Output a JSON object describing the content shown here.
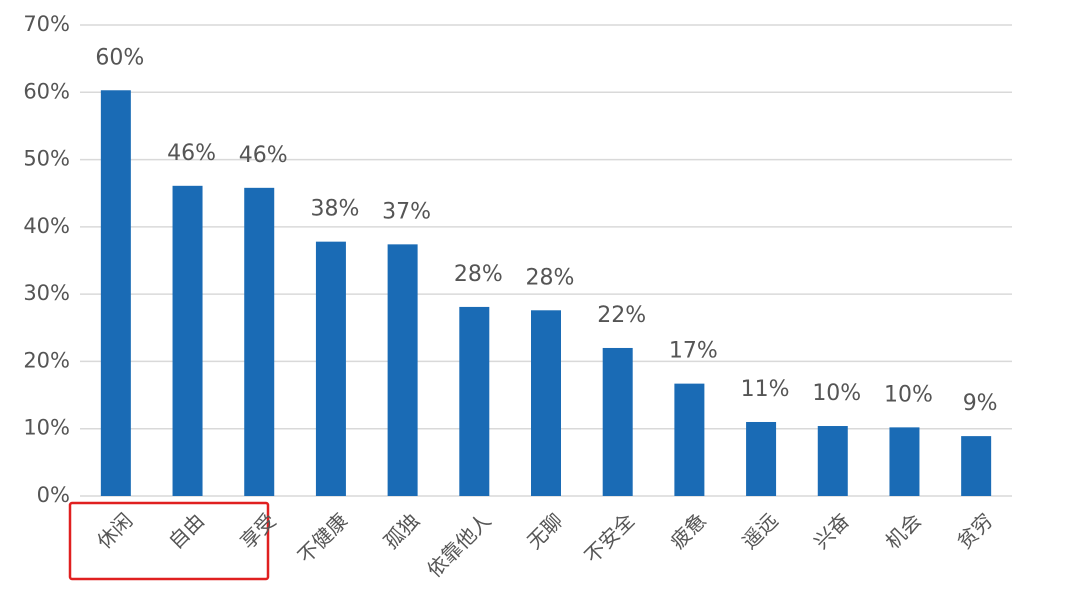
{
  "chart_data": {
    "type": "bar",
    "categories": [
      "休闲",
      "自由",
      "享受",
      "不健康",
      "孤独",
      "依靠他人",
      "无聊",
      "不安全",
      "疲惫",
      "遥远",
      "兴奋",
      "机会",
      "贫穷"
    ],
    "values": [
      60.3,
      46.1,
      45.8,
      37.8,
      37.4,
      28.1,
      27.6,
      22.0,
      16.7,
      11.0,
      10.4,
      10.2,
      8.9
    ],
    "value_labels": [
      "60%",
      "46%",
      "46%",
      "38%",
      "37%",
      "28%",
      "28%",
      "22%",
      "17%",
      "11%",
      "10%",
      "10%",
      "9%"
    ],
    "color": "#1a6bb5",
    "ylim": [
      0,
      70
    ],
    "yticks": [
      {
        "value": 0,
        "label": "0%"
      },
      {
        "value": 10,
        "label": "10%"
      },
      {
        "value": 20,
        "label": "20%"
      },
      {
        "value": 30,
        "label": "30%"
      },
      {
        "value": 40,
        "label": "40%"
      },
      {
        "value": 50,
        "label": "50%"
      },
      {
        "value": 60,
        "label": "60%"
      },
      {
        "value": 70,
        "label": "70%"
      }
    ],
    "grid": true
  }
}
